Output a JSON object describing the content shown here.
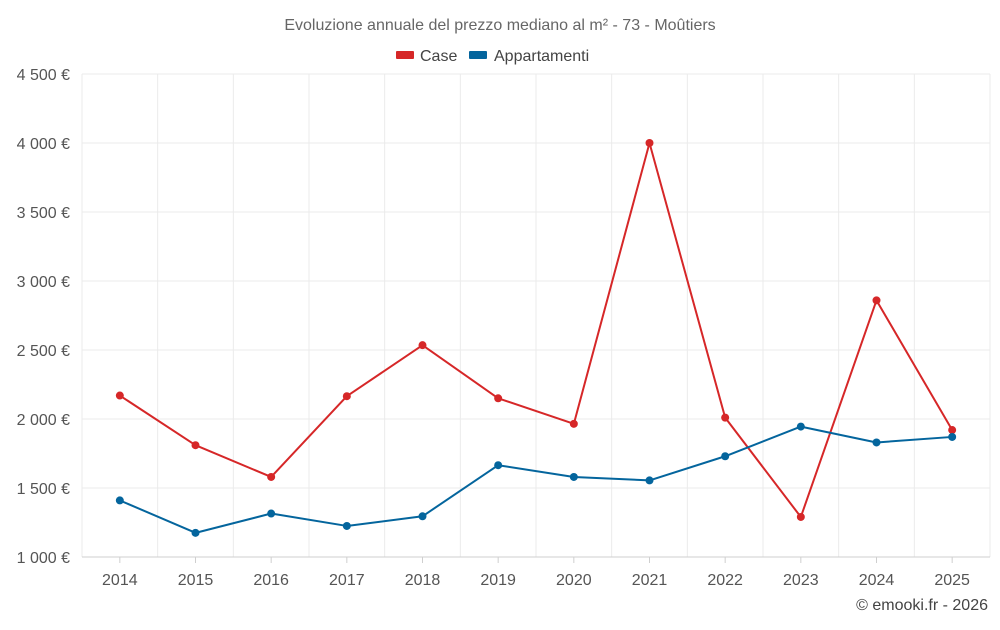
{
  "chart_data": {
    "type": "line",
    "title": "Evoluzione annuale del prezzo mediano al m² - 73 - Moûtiers",
    "categories": [
      "2014",
      "2015",
      "2016",
      "2017",
      "2018",
      "2019",
      "2020",
      "2021",
      "2022",
      "2023",
      "2024",
      "2025"
    ],
    "ylim": [
      1000,
      4500
    ],
    "yticks": [
      1000,
      1500,
      2000,
      2500,
      3000,
      3500,
      4000,
      4500
    ],
    "ytick_labels": [
      "1 000 €",
      "1 500 €",
      "2 000 €",
      "2 500 €",
      "3 000 €",
      "3 500 €",
      "4 000 €",
      "4 500 €"
    ],
    "xlabel": "",
    "ylabel": "",
    "grid": true,
    "legend_position": "top-center",
    "series": [
      {
        "name": "Case",
        "color": "#d62728",
        "values": [
          2170,
          1810,
          1580,
          2165,
          2535,
          2150,
          1965,
          4000,
          2010,
          1290,
          2860,
          1920
        ]
      },
      {
        "name": "Appartamenti",
        "color": "#04659d",
        "values": [
          1410,
          1175,
          1315,
          1225,
          1295,
          1665,
          1580,
          1555,
          1730,
          1945,
          1830,
          1870
        ]
      }
    ]
  },
  "footer": {
    "credit": "© emooki.fr - 2026"
  }
}
